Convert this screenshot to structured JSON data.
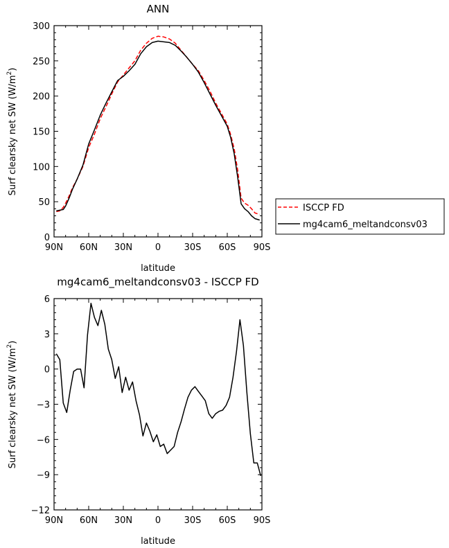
{
  "chart_data": [
    {
      "type": "line",
      "title": "ANN",
      "xlabel": "latitude",
      "ylabel_main": "Surf clearsky net SW (W/m",
      "ylabel_sup": "2",
      "ylabel_close": ")",
      "xlim": [
        90,
        -90
      ],
      "ylim": [
        0,
        300
      ],
      "xticks": [
        90,
        60,
        30,
        0,
        -30,
        -60,
        -90
      ],
      "xtick_labels": [
        "90N",
        "60N",
        "30N",
        "0",
        "30S",
        "60S",
        "90S"
      ],
      "yticks": [
        0,
        50,
        100,
        150,
        200,
        250,
        300
      ],
      "ytick_labels": [
        "0",
        "50",
        "100",
        "150",
        "200",
        "250",
        "300"
      ],
      "legend_position": "right",
      "series": [
        {
          "name": "ISCCP FD",
          "color": "#ff0000",
          "style": "dashed",
          "x": [
            88,
            85,
            82,
            80,
            77,
            74,
            70,
            65,
            60,
            55,
            50,
            45,
            40,
            35,
            30,
            25,
            20,
            15,
            10,
            5,
            0,
            -5,
            -10,
            -15,
            -20,
            -25,
            -30,
            -35,
            -40,
            -45,
            -50,
            -55,
            -60,
            -63,
            -66,
            -69,
            -72,
            -75,
            -78,
            -81,
            -84,
            -88
          ],
          "y": [
            36,
            37,
            42,
            48,
            58,
            70,
            82,
            100,
            127,
            146,
            168,
            185,
            203,
            220,
            230,
            240,
            250,
            265,
            275,
            282,
            285,
            284,
            281,
            275,
            265,
            255,
            245,
            236,
            222,
            207,
            190,
            175,
            160,
            145,
            125,
            95,
            55,
            48,
            45,
            40,
            34,
            32
          ]
        },
        {
          "name": "mg4cam6_meltandconsv03",
          "color": "#000000",
          "style": "solid",
          "x": [
            88,
            85,
            82,
            80,
            77,
            74,
            70,
            65,
            60,
            55,
            50,
            45,
            40,
            35,
            30,
            25,
            20,
            15,
            10,
            5,
            0,
            -5,
            -10,
            -15,
            -20,
            -25,
            -30,
            -35,
            -40,
            -45,
            -50,
            -55,
            -60,
            -63,
            -66,
            -69,
            -72,
            -75,
            -78,
            -81,
            -84,
            -88
          ],
          "y": [
            37,
            38,
            39,
            44,
            55,
            68,
            82,
            102,
            132,
            152,
            173,
            190,
            206,
            222,
            228,
            236,
            245,
            260,
            270,
            276,
            278,
            277,
            276,
            272,
            264,
            255,
            245,
            234,
            219,
            203,
            187,
            172,
            157,
            141,
            118,
            85,
            47,
            40,
            36,
            30,
            26,
            24
          ]
        }
      ]
    },
    {
      "type": "line",
      "title": "mg4cam6_meltandconsv03 - ISCCP FD",
      "xlabel": "latitude",
      "ylabel_main": "Surf clearsky net SW (W/m",
      "ylabel_sup": "2",
      "ylabel_close": ")",
      "xlim": [
        90,
        -90
      ],
      "ylim": [
        -12,
        6
      ],
      "xticks": [
        90,
        60,
        30,
        0,
        -30,
        -60,
        -90
      ],
      "xtick_labels": [
        "90N",
        "60N",
        "30N",
        "0",
        "30S",
        "60S",
        "90S"
      ],
      "yticks": [
        -12,
        -9,
        -6,
        -3,
        0,
        3,
        6
      ],
      "ytick_labels": [
        "−12",
        "−9",
        "−6",
        "−3",
        "0",
        "3",
        "6"
      ],
      "series": [
        {
          "color": "#000000",
          "style": "solid",
          "x": [
            88,
            85,
            82,
            79,
            76,
            73,
            70,
            67,
            64,
            61,
            58,
            55,
            52,
            49,
            46,
            43,
            40,
            37,
            34,
            31,
            28,
            25,
            22,
            19,
            16,
            13,
            10,
            7,
            4,
            1,
            -2,
            -5,
            -8,
            -11,
            -14,
            -17,
            -20,
            -23,
            -26,
            -29,
            -32,
            -35,
            -38,
            -41,
            -44,
            -47,
            -50,
            -53,
            -56,
            -59,
            -62,
            -65,
            -68,
            -71,
            -74,
            -77,
            -80,
            -83,
            -86,
            -89
          ],
          "y": [
            1.3,
            0.8,
            -2.9,
            -3.7,
            -1.8,
            -0.2,
            0.0,
            0.0,
            -1.6,
            2.9,
            5.6,
            4.4,
            3.7,
            5.0,
            3.8,
            1.7,
            0.8,
            -0.8,
            0.2,
            -2.0,
            -0.7,
            -1.8,
            -1.1,
            -2.7,
            -3.9,
            -5.7,
            -4.6,
            -5.3,
            -6.2,
            -5.6,
            -6.6,
            -6.4,
            -7.2,
            -6.9,
            -6.6,
            -5.4,
            -4.5,
            -3.4,
            -2.4,
            -1.8,
            -1.5,
            -1.9,
            -2.3,
            -2.7,
            -3.8,
            -4.2,
            -3.8,
            -3.6,
            -3.5,
            -3.1,
            -2.4,
            -0.7,
            1.5,
            4.2,
            2.0,
            -2.0,
            -5.5,
            -8.0,
            -8.0,
            -9.1
          ]
        }
      ]
    }
  ]
}
